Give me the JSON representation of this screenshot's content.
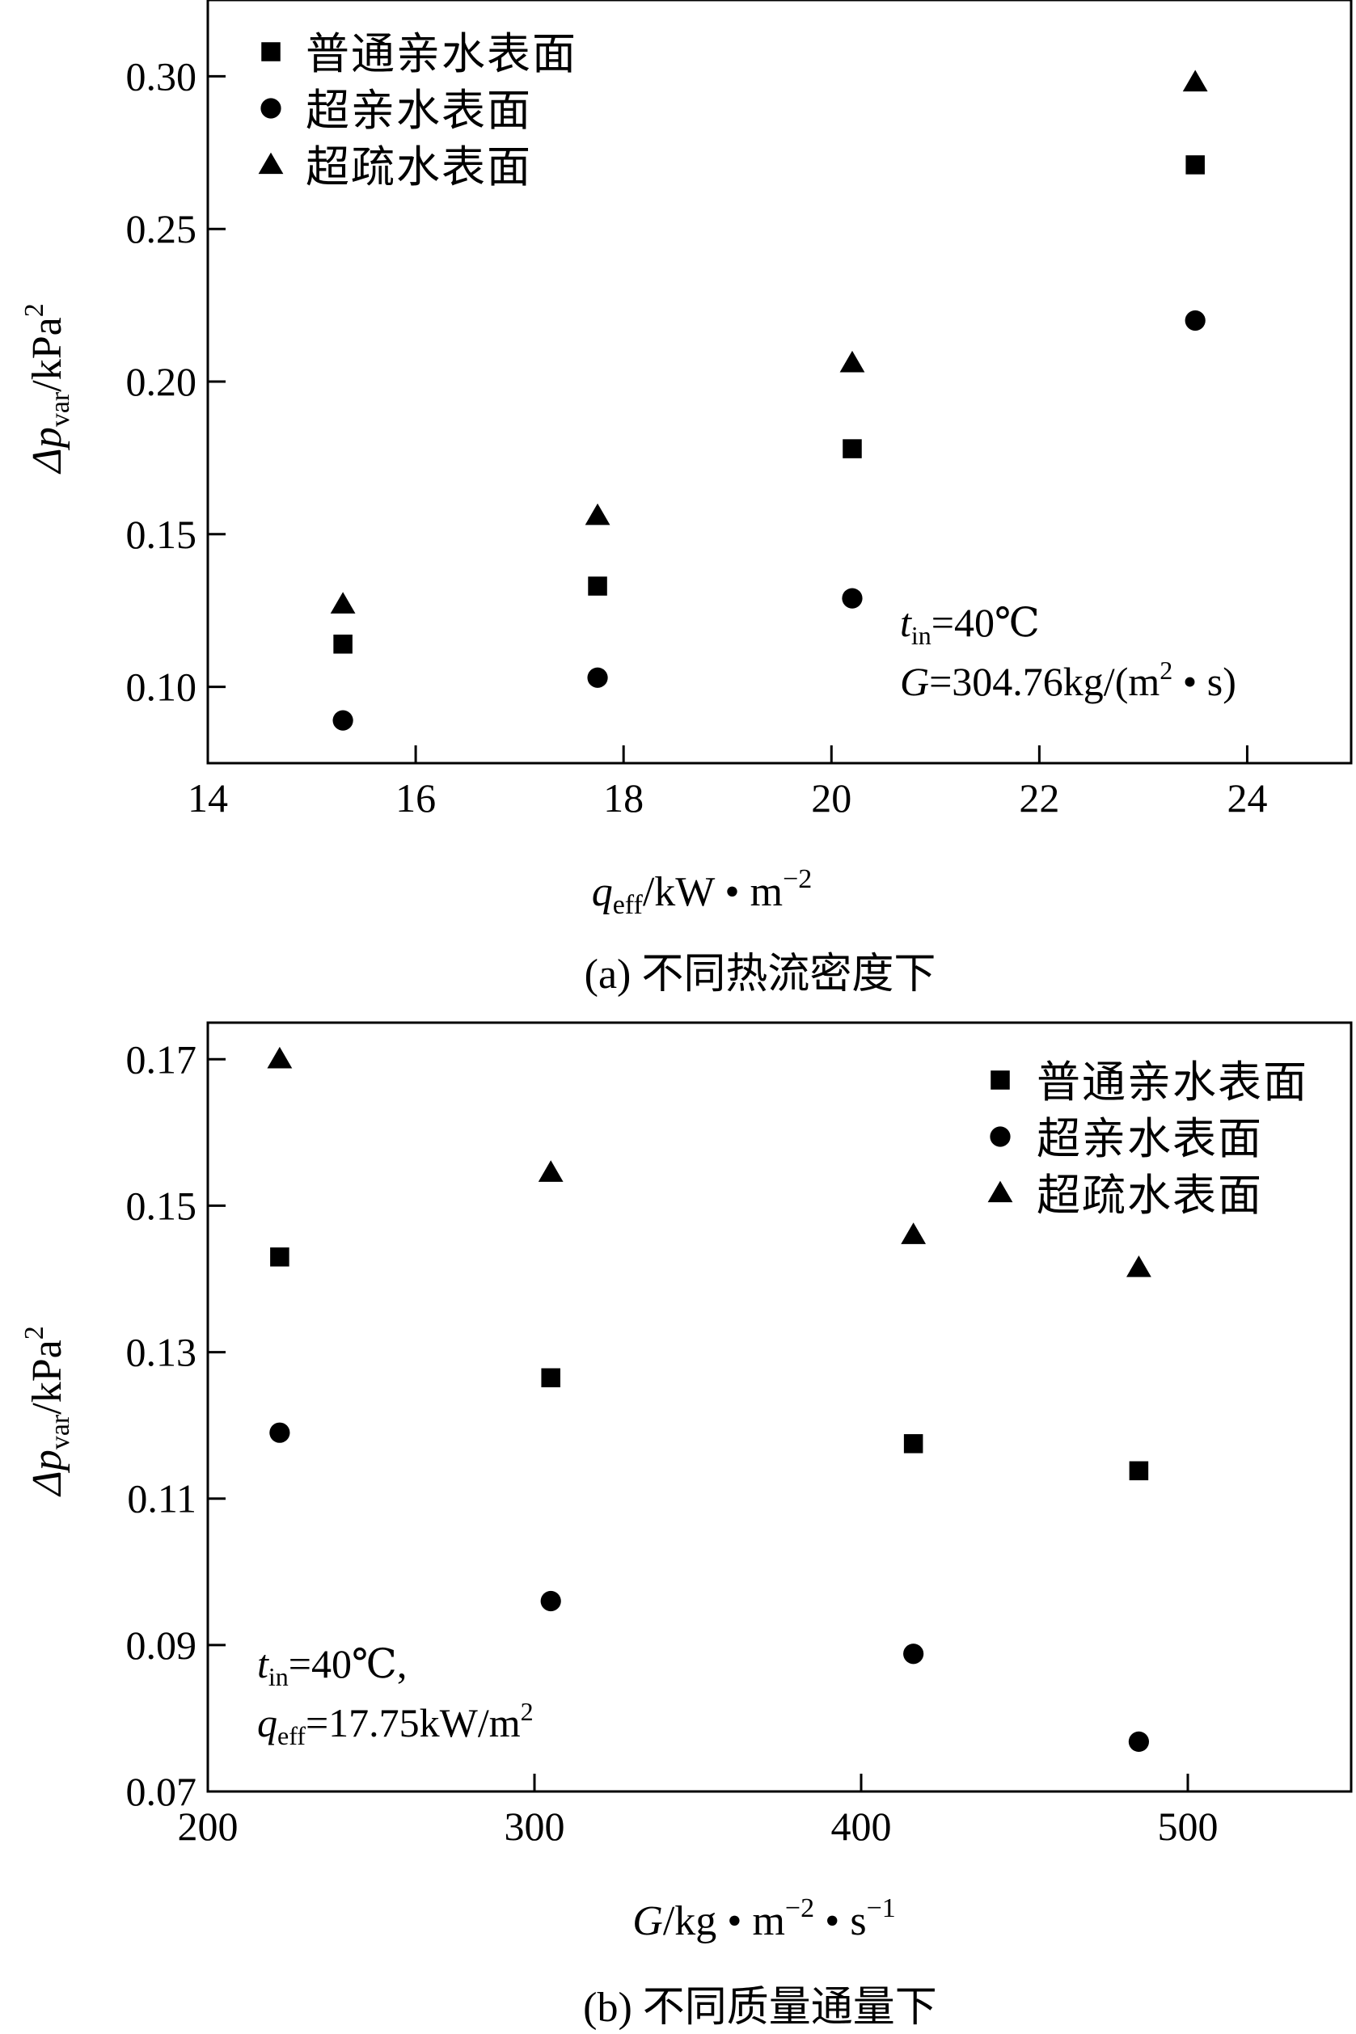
{
  "chart_data": [
    {
      "type": "scatter",
      "title": "",
      "caption": "(a) 不同热流密度下",
      "xlabel": {
        "base": "q",
        "sub": "eff",
        "rest": "/kW • m",
        "sup": "−2"
      },
      "ylabel": {
        "base": "Δp",
        "sub": "var",
        "rest": "/kPa",
        "sup": "2"
      },
      "xlim": [
        14,
        25
      ],
      "ylim": [
        0.075,
        0.325
      ],
      "xticks": [
        14,
        16,
        18,
        20,
        22,
        24
      ],
      "xtick_labels": [
        "14",
        "16",
        "18",
        "20",
        "22",
        "24"
      ],
      "yticks": [
        0.1,
        0.15,
        0.2,
        0.25,
        0.3
      ],
      "ytick_labels": [
        "0.10",
        "0.15",
        "0.20",
        "0.25",
        "0.30"
      ],
      "grid": false,
      "legend_position": "top-left",
      "annotation": {
        "line1": {
          "base": "t",
          "sub": "in",
          "rest": "=40℃"
        },
        "line2": {
          "base": "G",
          "rest": "=304.76kg/(m",
          "sup": "2",
          "tail": " • s)"
        }
      },
      "series": [
        {
          "name": "普通亲水表面",
          "marker": "square",
          "x": [
            15.3,
            17.75,
            20.2,
            23.5
          ],
          "y": [
            0.114,
            0.133,
            0.178,
            0.271
          ]
        },
        {
          "name": "超亲水表面",
          "marker": "circle",
          "x": [
            15.3,
            17.75,
            20.2,
            23.5
          ],
          "y": [
            0.089,
            0.103,
            0.129,
            0.22
          ]
        },
        {
          "name": "超疏水表面",
          "marker": "triangle",
          "x": [
            15.3,
            17.75,
            20.2,
            23.5
          ],
          "y": [
            0.127,
            0.156,
            0.206,
            0.298
          ]
        }
      ]
    },
    {
      "type": "scatter",
      "title": "",
      "caption": "(b) 不同质量通量下",
      "xlabel": {
        "base": "G",
        "rest": "/kg • m",
        "sup": "−2",
        "tail": " • s",
        "sup2": "−1"
      },
      "ylabel": {
        "base": "Δp",
        "sub": "var",
        "rest": "/kPa",
        "sup": "2"
      },
      "xlim": [
        200,
        550
      ],
      "ylim": [
        0.07,
        0.175
      ],
      "xticks": [
        200,
        300,
        400,
        500
      ],
      "xtick_labels": [
        "200",
        "300",
        "400",
        "500"
      ],
      "yticks": [
        0.07,
        0.09,
        0.11,
        0.13,
        0.15,
        0.17
      ],
      "ytick_labels": [
        "0.07",
        "0.09",
        "0.11",
        "0.13",
        "0.15",
        "0.17"
      ],
      "grid": false,
      "legend_position": "top-right",
      "annotation": {
        "line1": {
          "base": "t",
          "sub": "in",
          "rest": "=40℃,"
        },
        "line2": {
          "base": "q",
          "sub": "eff",
          "rest": "=17.75kW/m",
          "sup": "2"
        }
      },
      "series": [
        {
          "name": "普通亲水表面",
          "marker": "square",
          "x": [
            222,
            305,
            416,
            485
          ],
          "y": [
            0.143,
            0.1265,
            0.1175,
            0.1138
          ]
        },
        {
          "name": "超亲水表面",
          "marker": "circle",
          "x": [
            222,
            305,
            416,
            485
          ],
          "y": [
            0.119,
            0.096,
            0.0888,
            0.0768
          ]
        },
        {
          "name": "超疏水表面",
          "marker": "triangle",
          "x": [
            222,
            305,
            416,
            485
          ],
          "y": [
            0.17,
            0.1545,
            0.146,
            0.1415
          ]
        }
      ]
    }
  ]
}
